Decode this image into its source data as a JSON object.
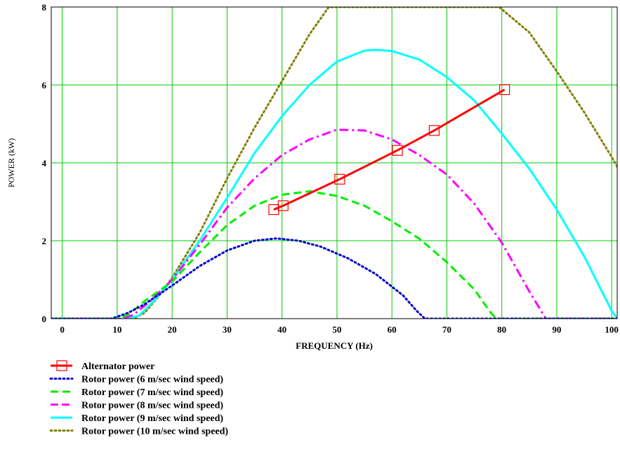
{
  "chart_data": {
    "type": "line",
    "xlabel": "FREQUENCY (Hz)",
    "ylabel": "POWER (kW)",
    "xlim": [
      -2,
      101
    ],
    "ylim": [
      0,
      8
    ],
    "x_ticks": [
      0,
      10,
      20,
      30,
      40,
      50,
      60,
      70,
      80,
      90,
      100
    ],
    "y_ticks": [
      0,
      2,
      4,
      6,
      8
    ],
    "grid": true,
    "legend_position": "bottom-left, below plot",
    "series": [
      {
        "name": "Alternator power",
        "color": "#ff0000",
        "style": "solid",
        "marker": "square",
        "x": [
          38.5,
          40.2,
          50.5,
          61,
          67.7,
          80.5
        ],
        "y": [
          2.8,
          2.9,
          3.58,
          4.32,
          4.83,
          5.88
        ]
      },
      {
        "name": "Rotor power (6  m/sec wind speed)",
        "color": "#0000cc",
        "style": "dotted",
        "x": [
          -2,
          9,
          12,
          15,
          20,
          25,
          30,
          35,
          39,
          43,
          47,
          52,
          57,
          62,
          64.5,
          66,
          80,
          101
        ],
        "y": [
          0,
          0,
          0.15,
          0.37,
          0.85,
          1.35,
          1.75,
          2.0,
          2.06,
          2.0,
          1.85,
          1.55,
          1.15,
          0.6,
          0.2,
          0,
          0,
          0
        ]
      },
      {
        "name": "Rotor power (7  m/sec wind speed)",
        "color": "#00ee00",
        "style": "dashed",
        "x": [
          -2,
          10,
          12,
          15,
          20,
          25,
          30,
          35,
          40,
          45,
          50,
          55,
          60,
          65,
          70,
          75,
          78,
          79,
          101
        ],
        "y": [
          0,
          0,
          0.1,
          0.45,
          0.95,
          1.7,
          2.4,
          2.9,
          3.18,
          3.27,
          3.15,
          2.9,
          2.5,
          2.05,
          1.45,
          0.75,
          0.15,
          0,
          0
        ]
      },
      {
        "name": "Rotor power (8  m/sec wind speed)",
        "color": "#ff00ff",
        "style": "dashdot",
        "x": [
          -2,
          11,
          13,
          16,
          20,
          25,
          30,
          35,
          40,
          45,
          50,
          55,
          60,
          65,
          70,
          75,
          80,
          85,
          88,
          101
        ],
        "y": [
          0,
          0,
          0.1,
          0.45,
          1.0,
          1.9,
          2.85,
          3.6,
          4.2,
          4.6,
          4.85,
          4.83,
          4.6,
          4.2,
          3.7,
          2.95,
          1.95,
          0.7,
          0,
          0
        ]
      },
      {
        "name": "Rotor power (9  m/sec wind speed)",
        "color": "#00ffff",
        "style": "solid",
        "x": [
          -2,
          12,
          14,
          17,
          20,
          25,
          30,
          35,
          40,
          45,
          50,
          55,
          57,
          60,
          65,
          70,
          75,
          80,
          85,
          90,
          95,
          100,
          101
        ],
        "y": [
          0,
          0,
          0.08,
          0.5,
          1.0,
          2.0,
          3.1,
          4.25,
          5.2,
          6.0,
          6.6,
          6.88,
          6.9,
          6.87,
          6.65,
          6.2,
          5.6,
          4.75,
          3.85,
          2.8,
          1.6,
          0.2,
          0
        ]
      },
      {
        "name": "Rotor power (10  m/sec wind speed)",
        "color": "#808000",
        "style": "dotted",
        "x": [
          -2,
          13,
          15,
          18,
          20,
          25,
          30,
          35,
          40,
          45,
          48.5,
          79.5,
          85,
          90,
          95,
          100,
          101
        ],
        "y": [
          0,
          0,
          0.15,
          0.65,
          1.05,
          2.2,
          3.6,
          4.9,
          6.1,
          7.3,
          8.0,
          8.0,
          7.35,
          6.35,
          5.3,
          4.15,
          3.9
        ]
      }
    ]
  }
}
